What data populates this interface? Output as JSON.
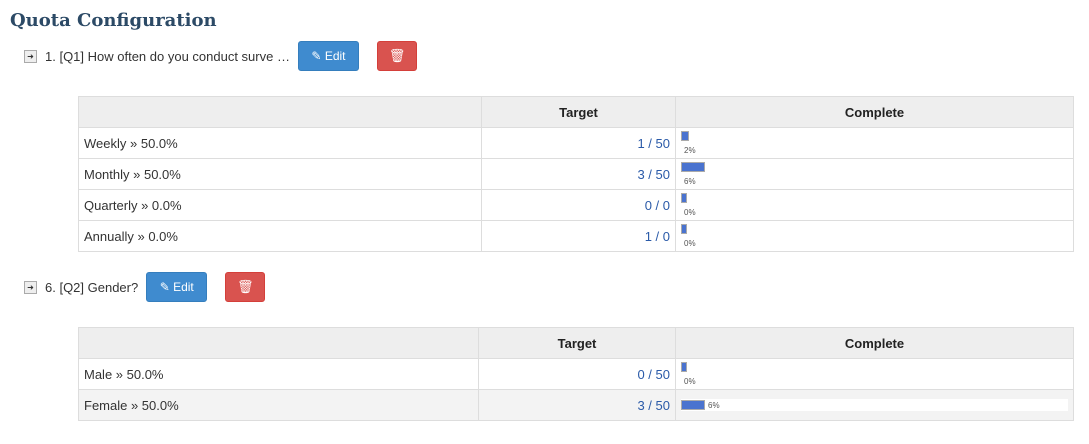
{
  "title": "Quota Configuration",
  "edit_label": "Edit",
  "colors": {
    "edit": "#3f8bcf",
    "delete": "#d9534f",
    "bar": "#4a73cf"
  },
  "headers": {
    "target": "Target",
    "complete": "Complete"
  },
  "quotas": [
    {
      "question": "1. [Q1] How often do you conduct surve …",
      "rows": [
        {
          "label": "Weekly » 50.0%",
          "target": "1 / 50",
          "pct": 2,
          "pct_label": "2%"
        },
        {
          "label": "Monthly » 50.0%",
          "target": "3 / 50",
          "pct": 6,
          "pct_label": "6%"
        },
        {
          "label": "Quarterly » 0.0%",
          "target": "0 / 0",
          "pct": 0,
          "pct_label": "0%"
        },
        {
          "label": "Annually » 0.0%",
          "target": "1 / 0",
          "pct": 0,
          "pct_label": "0%"
        }
      ]
    },
    {
      "question": "6. [Q2] Gender?",
      "rows": [
        {
          "label": "Male » 50.0%",
          "target": "0 / 50",
          "pct": 0,
          "pct_label": "0%"
        },
        {
          "label": "Female » 50.0%",
          "target": "3 / 50",
          "pct": 6,
          "pct_label": "6%"
        }
      ]
    }
  ]
}
